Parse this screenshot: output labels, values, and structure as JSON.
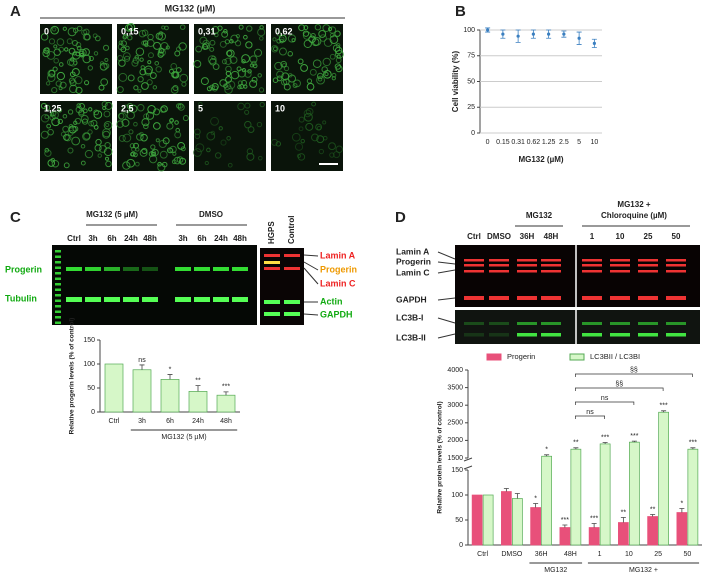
{
  "figure": {
    "panel_labels": [
      "A",
      "B",
      "C",
      "D"
    ],
    "panel_a": {
      "title": "MG132 (µM)",
      "concentrations": [
        "0",
        "0,15",
        "0,31",
        "0,62",
        "1,25",
        "2,5",
        "5",
        "10"
      ]
    },
    "panel_c_blot": {
      "treatments": [
        "MG132 (5 µM)",
        "DMSO"
      ],
      "lanes": [
        "Ctrl",
        "3h",
        "6h",
        "24h",
        "48h",
        "3h",
        "6h",
        "24h",
        "48h"
      ],
      "control_lanes": [
        "HGPS",
        "Control"
      ],
      "left_labels": [
        "Progerin",
        "Tubulin"
      ],
      "right_labels": [
        "Lamin A",
        "Progerin",
        "Lamin C",
        "Actin",
        "GAPDH"
      ]
    },
    "panel_d_blot": {
      "treatments": [
        "MG132",
        "MG132 +",
        "Chloroquine (µM)"
      ],
      "lanes": [
        "Ctrl",
        "DMSO",
        "36H",
        "48H",
        "1",
        "10",
        "25",
        "50"
      ],
      "left_labels": [
        "Lamin A",
        "Progerin",
        "Lamin C",
        "GAPDH",
        "LC3B-I",
        "LC3B-II"
      ]
    }
  },
  "chart_data": [
    {
      "type": "scatter",
      "ylabel": "Cell viability (%)",
      "xlabel": "MG132 (µM)",
      "categories": [
        "0",
        "0.15",
        "0.31",
        "0.62",
        "1.25",
        "2.5",
        "5",
        "10"
      ],
      "values": [
        100,
        96,
        94,
        96,
        96,
        96,
        92,
        87
      ],
      "errors": [
        2,
        4,
        6,
        4,
        4,
        3,
        6,
        4
      ],
      "color": "#3a7fc0",
      "ylim": [
        0,
        100
      ],
      "yticks": [
        0,
        25,
        50,
        75,
        100
      ],
      "grid": true
    },
    {
      "type": "bar",
      "ylabel": "Relative progerin levels (% of control)",
      "group_labels": [
        "MG132 (5 µM)"
      ],
      "categories": [
        "Ctrl",
        "3h",
        "6h",
        "24h",
        "48h"
      ],
      "values": [
        100,
        88,
        68,
        43,
        35
      ],
      "errors": [
        null,
        10,
        10,
        12,
        7
      ],
      "annotations": [
        null,
        "ns",
        "*",
        "**",
        "***"
      ],
      "color": "#d6f7c8",
      "ylim": [
        0,
        150
      ],
      "yticks": [
        0,
        50,
        100,
        150
      ],
      "grid": false
    },
    {
      "type": "bar",
      "ylabel": "Relative protein levels (% of control)",
      "group_labels": [
        "MG132",
        "MG132 +",
        "Chloroquine (µM)"
      ],
      "categories": [
        "Ctrl",
        "DMSO",
        "36H",
        "48H",
        "1",
        "10",
        "25",
        "50"
      ],
      "series": [
        {
          "name": "Progerin",
          "color": "#e8507a",
          "values": [
            100,
            107,
            75,
            35,
            35,
            45,
            57,
            65
          ],
          "errors": [
            null,
            6,
            8,
            5,
            8,
            10,
            4,
            8
          ],
          "annotations": [
            null,
            null,
            "*",
            "***",
            "***",
            "**",
            "**",
            "*"
          ]
        },
        {
          "name": "LC3BII / LC3BI",
          "color": "#d6f7c8",
          "values": [
            100,
            93,
            1550,
            1750,
            1900,
            1950,
            2800,
            1750
          ],
          "errors": [
            null,
            10,
            40,
            40,
            40,
            30,
            40,
            40
          ],
          "annotations": [
            null,
            null,
            "*",
            "**",
            "***",
            "***",
            "***",
            "***"
          ]
        }
      ],
      "comparisons": [
        "ns",
        "ns",
        "§§",
        "§§"
      ],
      "ylim": [
        0,
        4000
      ],
      "axis_break": [
        150,
        1500
      ],
      "yticks": [
        0,
        50,
        100,
        150,
        1500,
        2000,
        2500,
        3000,
        3500,
        4000
      ],
      "grid": false
    }
  ]
}
